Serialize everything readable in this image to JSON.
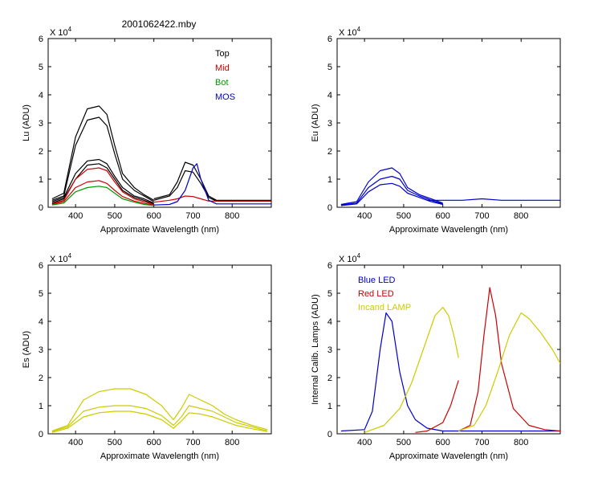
{
  "figure_title": "2001062422.mby",
  "chart_data": [
    {
      "id": "lu",
      "type": "line",
      "title": "2001062422.mby",
      "xlabel": "Approximate Wavelength (nm)",
      "ylabel": "Lu (ADU)",
      "multiplier": "X 10",
      "multiplier_exp": "4",
      "xlim": [
        330,
        900
      ],
      "ylim": [
        0,
        6
      ],
      "xticks": [
        400,
        500,
        600,
        700,
        800
      ],
      "yticks": [
        0,
        1,
        2,
        3,
        4,
        5,
        6
      ],
      "legend": [
        {
          "label": "Top",
          "color": "#000000"
        },
        {
          "label": "Mid",
          "color": "#cc0000"
        },
        {
          "label": "Bot",
          "color": "#009900"
        },
        {
          "label": "MOS",
          "color": "#0000cc"
        }
      ],
      "series": [
        {
          "name": "Top 1",
          "color": "#000000",
          "x": [
            340,
            370,
            400,
            430,
            460,
            480,
            500,
            520,
            550,
            575,
            600
          ],
          "y": [
            0.3,
            0.5,
            2.5,
            3.5,
            3.6,
            3.3,
            2.2,
            1.2,
            0.7,
            0.45,
            0.25
          ]
        },
        {
          "name": "Top 2",
          "color": "#000000",
          "x": [
            340,
            370,
            400,
            430,
            460,
            480,
            500,
            520,
            550,
            575,
            600
          ],
          "y": [
            0.25,
            0.4,
            2.2,
            3.1,
            3.2,
            2.9,
            1.9,
            1.0,
            0.6,
            0.4,
            0.2
          ]
        },
        {
          "name": "Top 3",
          "color": "#000000",
          "x": [
            340,
            370,
            400,
            430,
            460,
            480,
            500,
            520,
            550,
            575,
            600
          ],
          "y": [
            0.2,
            0.35,
            1.2,
            1.65,
            1.7,
            1.55,
            1.1,
            0.7,
            0.4,
            0.3,
            0.15
          ]
        },
        {
          "name": "Top 4",
          "color": "#000000",
          "x": [
            340,
            370,
            400,
            430,
            460,
            480,
            500,
            520,
            550,
            575,
            600
          ],
          "y": [
            0.15,
            0.3,
            1.0,
            1.5,
            1.55,
            1.4,
            1.0,
            0.6,
            0.35,
            0.25,
            0.12
          ]
        },
        {
          "name": "Mid 1",
          "color": "#cc0000",
          "x": [
            340,
            370,
            400,
            430,
            460,
            480,
            500,
            520,
            550,
            575,
            600
          ],
          "y": [
            0.12,
            0.25,
            1.0,
            1.35,
            1.4,
            1.3,
            0.9,
            0.55,
            0.3,
            0.2,
            0.1
          ]
        },
        {
          "name": "Mid 2",
          "color": "#cc0000",
          "x": [
            340,
            370,
            400,
            430,
            460,
            480,
            500,
            520,
            550,
            575,
            600
          ],
          "y": [
            0.1,
            0.2,
            0.7,
            0.9,
            0.95,
            0.85,
            0.6,
            0.38,
            0.22,
            0.14,
            0.08
          ]
        },
        {
          "name": "Bot 1",
          "color": "#009900",
          "x": [
            340,
            370,
            400,
            430,
            460,
            480,
            500,
            520,
            550,
            575,
            600
          ],
          "y": [
            0.08,
            0.15,
            0.55,
            0.7,
            0.75,
            0.7,
            0.5,
            0.3,
            0.18,
            0.1,
            0.06
          ]
        },
        {
          "name": "Top 5",
          "color": "#000000",
          "x": [
            600,
            640,
            660,
            680,
            700,
            720,
            740,
            760,
            800,
            850,
            900
          ],
          "y": [
            0.3,
            0.45,
            0.9,
            1.6,
            1.5,
            1.0,
            0.4,
            0.25,
            0.25,
            0.25,
            0.25
          ]
        },
        {
          "name": "Top 6",
          "color": "#000000",
          "x": [
            600,
            640,
            660,
            680,
            700,
            720,
            740,
            760,
            800,
            850,
            900
          ],
          "y": [
            0.25,
            0.4,
            0.7,
            1.3,
            1.25,
            0.85,
            0.35,
            0.22,
            0.22,
            0.22,
            0.22
          ]
        },
        {
          "name": "Mid 3",
          "color": "#cc0000",
          "x": [
            600,
            640,
            660,
            680,
            700,
            720,
            740,
            760,
            800,
            850,
            900
          ],
          "y": [
            0.18,
            0.25,
            0.3,
            0.4,
            0.38,
            0.3,
            0.22,
            0.22,
            0.22,
            0.22,
            0.22
          ]
        },
        {
          "name": "MOS 1",
          "color": "#0000cc",
          "x": [
            600,
            640,
            660,
            680,
            700,
            710,
            720,
            740,
            760,
            800,
            850,
            900
          ],
          "y": [
            0.08,
            0.1,
            0.2,
            0.6,
            1.4,
            1.55,
            1.0,
            0.25,
            0.12,
            0.12,
            0.12,
            0.12
          ]
        }
      ]
    },
    {
      "id": "eu",
      "type": "line",
      "title": "",
      "xlabel": "Approximate Wavelength (nm)",
      "ylabel": "Eu  (ADU)",
      "multiplier": "X 10",
      "multiplier_exp": "4",
      "xlim": [
        330,
        900
      ],
      "ylim": [
        0,
        6
      ],
      "xticks": [
        400,
        500,
        600,
        700,
        800
      ],
      "yticks": [
        0,
        1,
        2,
        3,
        4,
        5,
        6
      ],
      "legend": [],
      "series": [
        {
          "name": "Eu 1",
          "color": "#0000cc",
          "x": [
            340,
            380,
            410,
            440,
            470,
            490,
            510,
            540,
            570,
            600
          ],
          "y": [
            0.1,
            0.2,
            0.9,
            1.3,
            1.4,
            1.2,
            0.7,
            0.45,
            0.3,
            0.15
          ]
        },
        {
          "name": "Eu 2",
          "color": "#0000cc",
          "x": [
            340,
            380,
            410,
            440,
            470,
            490,
            510,
            540,
            570,
            600
          ],
          "y": [
            0.08,
            0.15,
            0.7,
            1.0,
            1.1,
            1.0,
            0.6,
            0.4,
            0.25,
            0.12
          ]
        },
        {
          "name": "Eu 3",
          "color": "#0000cc",
          "x": [
            340,
            380,
            410,
            440,
            470,
            490,
            510,
            540,
            570,
            600
          ],
          "y": [
            0.06,
            0.12,
            0.55,
            0.8,
            0.85,
            0.75,
            0.5,
            0.35,
            0.2,
            0.1
          ]
        },
        {
          "name": "Eu 4",
          "color": "#0000cc",
          "x": [
            560,
            600,
            650,
            700,
            750,
            800,
            850,
            900
          ],
          "y": [
            0.25,
            0.25,
            0.25,
            0.3,
            0.25,
            0.25,
            0.25,
            0.25
          ]
        }
      ]
    },
    {
      "id": "es",
      "type": "line",
      "title": "",
      "xlabel": "Approximate Wavelength (nm)",
      "ylabel": "Es  (ADU)",
      "multiplier": "X 10",
      "multiplier_exp": "4",
      "xlim": [
        330,
        900
      ],
      "ylim": [
        0,
        6
      ],
      "xticks": [
        400,
        500,
        600,
        700,
        800
      ],
      "yticks": [
        0,
        1,
        2,
        3,
        4,
        5,
        6
      ],
      "legend": [],
      "series": [
        {
          "name": "Es 1",
          "color": "#cccc00",
          "x": [
            340,
            380,
            420,
            460,
            500,
            540,
            580,
            620,
            650,
            670,
            690,
            720,
            750,
            780,
            810,
            850,
            890
          ],
          "y": [
            0.1,
            0.3,
            1.2,
            1.5,
            1.6,
            1.6,
            1.4,
            1.0,
            0.5,
            0.9,
            1.4,
            1.2,
            1.0,
            0.7,
            0.5,
            0.3,
            0.15
          ]
        },
        {
          "name": "Es 2",
          "color": "#cccc00",
          "x": [
            340,
            380,
            420,
            460,
            500,
            540,
            580,
            620,
            650,
            670,
            690,
            720,
            750,
            780,
            810,
            850,
            890
          ],
          "y": [
            0.08,
            0.25,
            0.8,
            0.95,
            1.0,
            1.0,
            0.9,
            0.65,
            0.3,
            0.6,
            1.0,
            0.9,
            0.8,
            0.6,
            0.4,
            0.25,
            0.1
          ]
        },
        {
          "name": "Es 3",
          "color": "#cccc00",
          "x": [
            340,
            380,
            420,
            460,
            500,
            540,
            580,
            620,
            650,
            670,
            690,
            720,
            750,
            780,
            810,
            850,
            890
          ],
          "y": [
            0.05,
            0.2,
            0.6,
            0.75,
            0.8,
            0.8,
            0.7,
            0.5,
            0.2,
            0.45,
            0.75,
            0.7,
            0.6,
            0.45,
            0.3,
            0.18,
            0.08
          ]
        }
      ]
    },
    {
      "id": "lamps",
      "type": "line",
      "title": "",
      "xlabel": "Approximate Wavelength (nm)",
      "ylabel": "Internal Calib. Lamps (ADU)",
      "multiplier": "X 10",
      "multiplier_exp": "4",
      "xlim": [
        330,
        900
      ],
      "ylim": [
        0,
        6
      ],
      "xticks": [
        400,
        500,
        600,
        700,
        800
      ],
      "yticks": [
        0,
        1,
        2,
        3,
        4,
        5,
        6
      ],
      "legend": [
        {
          "label": "Blue LED",
          "color": "#0000cc"
        },
        {
          "label": "Red LED",
          "color": "#cc0000"
        },
        {
          "label": "Incand LAMP",
          "color": "#cccc00"
        }
      ],
      "series": [
        {
          "name": "Blue LED",
          "color": "#0000cc",
          "x": [
            340,
            400,
            420,
            440,
            455,
            470,
            490,
            510,
            530,
            560,
            600,
            700,
            900
          ],
          "y": [
            0.1,
            0.15,
            0.8,
            3.0,
            4.3,
            4.0,
            2.2,
            1.0,
            0.5,
            0.2,
            0.1,
            0.1,
            0.1
          ]
        },
        {
          "name": "Red LED low",
          "color": "#cc0000",
          "x": [
            530,
            560,
            600,
            620,
            640
          ],
          "y": [
            0.05,
            0.1,
            0.4,
            1.0,
            1.9
          ]
        },
        {
          "name": "Red LED",
          "color": "#cc0000",
          "x": [
            640,
            670,
            690,
            705,
            720,
            735,
            750,
            780,
            820,
            860,
            900
          ],
          "y": [
            0.1,
            0.3,
            1.5,
            3.5,
            5.2,
            4.2,
            2.5,
            0.9,
            0.3,
            0.15,
            0.1
          ]
        },
        {
          "name": "Incand LAMP 1",
          "color": "#cccc00",
          "x": [
            400,
            450,
            490,
            520,
            550,
            580,
            600,
            615,
            630,
            640
          ],
          "y": [
            0.05,
            0.3,
            0.9,
            1.8,
            3.0,
            4.2,
            4.5,
            4.2,
            3.4,
            2.7
          ]
        },
        {
          "name": "Incand LAMP 2",
          "color": "#cccc00",
          "x": [
            640,
            680,
            710,
            740,
            770,
            800,
            820,
            850,
            880,
            900
          ],
          "y": [
            0.1,
            0.3,
            1.0,
            2.2,
            3.5,
            4.3,
            4.1,
            3.6,
            3.0,
            2.5
          ]
        }
      ]
    }
  ]
}
